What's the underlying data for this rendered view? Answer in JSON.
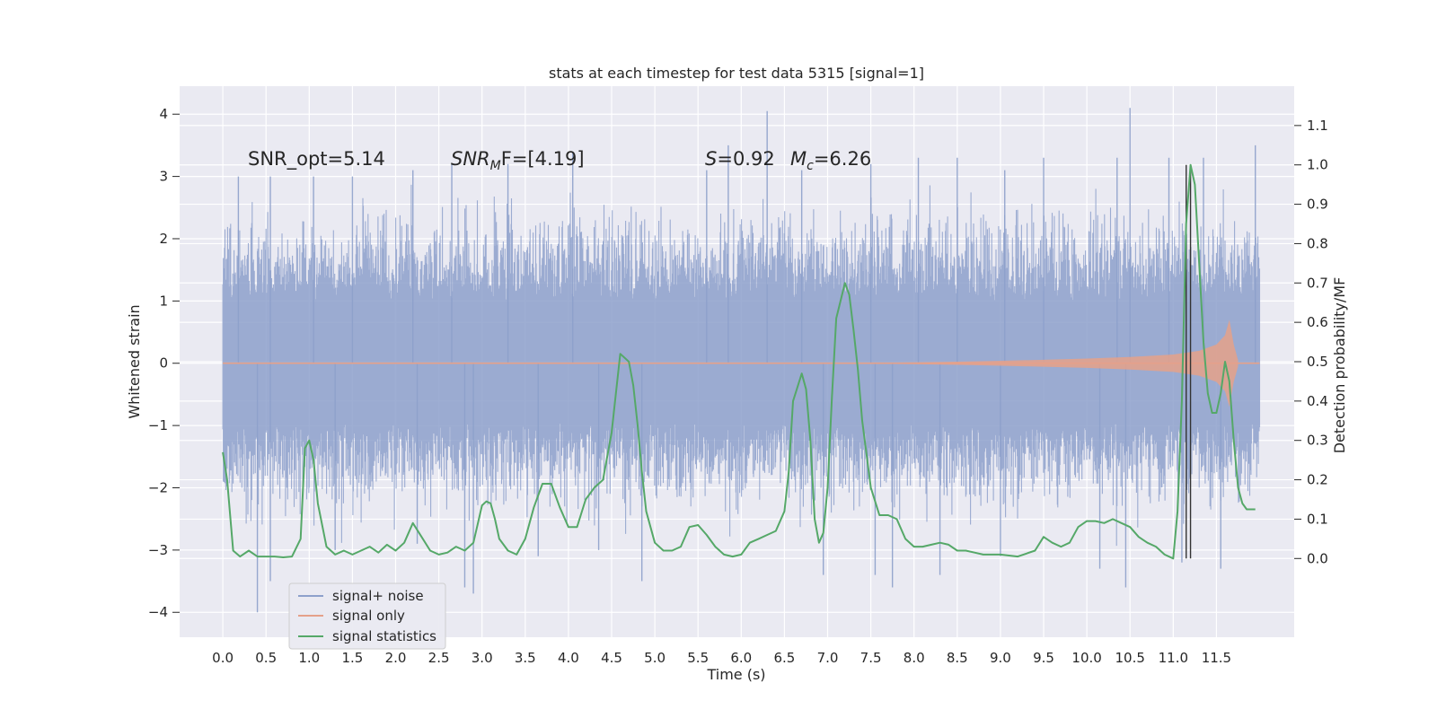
{
  "chart_data": {
    "type": "line",
    "title": "stats at each timestep for test data 5315 [signal=1]",
    "xlabel": "Time (s)",
    "ylabel_left": "Whitened strain",
    "ylabel_right": "Detection probability/MF",
    "xlim": [
      -0.5,
      12.4
    ],
    "ylim_left": [
      -4.4,
      4.45
    ],
    "ylim_right": [
      -0.2,
      1.2
    ],
    "x_ticks": [
      0.0,
      0.5,
      1.0,
      1.5,
      2.0,
      2.5,
      3.0,
      3.5,
      4.0,
      4.5,
      5.0,
      5.5,
      6.0,
      6.5,
      7.0,
      7.5,
      8.0,
      8.5,
      9.0,
      9.5,
      10.0,
      10.5,
      11.0,
      11.5
    ],
    "x_tick_labels": [
      "0.0",
      "0.5",
      "1.0",
      "1.5",
      "2.0",
      "2.5",
      "3.0",
      "3.5",
      "4.0",
      "4.5",
      "5.0",
      "5.5",
      "6.0",
      "6.5",
      "7.0",
      "7.5",
      "8.0",
      "8.5",
      "9.0",
      "9.5",
      "10.0",
      "10.5",
      "11.0",
      "11.5"
    ],
    "y_left_ticks": [
      4,
      3,
      2,
      1,
      0,
      -1,
      -2,
      -3,
      -4
    ],
    "y_left_tick_labels": [
      "4",
      "3",
      "2",
      "1",
      "0",
      "−1",
      "−2",
      "−3",
      "−4"
    ],
    "y_right_ticks": [
      1.1,
      1.0,
      0.9,
      0.8,
      0.7,
      0.6,
      0.5,
      0.4,
      0.3,
      0.2,
      0.1,
      0.0
    ],
    "y_right_tick_labels": [
      "1.1",
      "1.0",
      "0.9",
      "0.8",
      "0.7",
      "0.6",
      "0.5",
      "0.4",
      "0.3",
      "0.2",
      "0.1",
      "0.0"
    ],
    "annotations": {
      "snr_opt": "SNR_opt=5.14",
      "snr_mf_main": "SNR",
      "snr_mf_sub": "M",
      "snr_mf_rest": "F=[4.19]",
      "s_var": "S",
      "s_val": "=0.92",
      "mc_var": "M",
      "mc_sub": "c",
      "mc_val": "=6.26"
    },
    "legend": {
      "placement": "lower-left",
      "entries": [
        "signal+ noise",
        "signal only",
        "signal statistics"
      ]
    },
    "grid": true,
    "series": [
      {
        "name": "signal+ noise",
        "color": "#8da0cb",
        "axis": "left",
        "x_range": [
          0.0,
          12.0
        ],
        "band_typical": [
          -1.6,
          1.7
        ],
        "spikes_up": [
          [
            0.18,
            3.0
          ],
          [
            0.55,
            3.0
          ],
          [
            1.05,
            3.0
          ],
          [
            1.5,
            3.0
          ],
          [
            2.2,
            3.1
          ],
          [
            2.65,
            3.2
          ],
          [
            3.3,
            3.2
          ],
          [
            4.05,
            3.4
          ],
          [
            5.6,
            3.1
          ],
          [
            5.85,
            3.5
          ],
          [
            6.3,
            4.05
          ],
          [
            6.7,
            3.1
          ],
          [
            7.5,
            3.2
          ],
          [
            8.05,
            3.3
          ],
          [
            8.5,
            3.3
          ],
          [
            9.05,
            3.1
          ],
          [
            9.5,
            3.3
          ],
          [
            10.35,
            3.3
          ],
          [
            10.95,
            3.3
          ],
          [
            11.35,
            3.3
          ],
          [
            11.95,
            3.5
          ],
          [
            10.5,
            4.1
          ]
        ],
        "spikes_down": [
          [
            0.4,
            -4.0
          ],
          [
            0.55,
            -3.5
          ],
          [
            1.3,
            -3.0
          ],
          [
            2.25,
            -2.9
          ],
          [
            2.8,
            -3.6
          ],
          [
            2.9,
            -3.7
          ],
          [
            3.65,
            -3.1
          ],
          [
            4.35,
            -3.0
          ],
          [
            4.85,
            -3.5
          ],
          [
            6.95,
            -3.4
          ],
          [
            7.55,
            -3.4
          ],
          [
            7.75,
            -3.6
          ],
          [
            8.3,
            -3.4
          ],
          [
            9.0,
            -3.1
          ],
          [
            10.15,
            -3.3
          ],
          [
            10.45,
            -3.6
          ],
          [
            11.1,
            -3.2
          ],
          [
            11.55,
            -3.3
          ]
        ]
      },
      {
        "name": "signal only",
        "color": "#e5a18a",
        "axis": "left",
        "envelope": {
          "x": [
            7.5,
            8.0,
            8.5,
            9.0,
            9.5,
            10.0,
            10.5,
            11.0,
            11.3,
            11.5,
            11.6,
            11.65,
            11.7,
            11.75
          ],
          "amp": [
            0.005,
            0.015,
            0.025,
            0.04,
            0.055,
            0.075,
            0.1,
            0.14,
            0.2,
            0.3,
            0.45,
            0.7,
            0.3,
            0.05
          ]
        }
      },
      {
        "name": "signal statistics",
        "color": "#55a868",
        "axis": "right",
        "x": [
          0.0,
          0.05,
          0.12,
          0.2,
          0.3,
          0.4,
          0.5,
          0.6,
          0.7,
          0.8,
          0.9,
          0.95,
          1.0,
          1.05,
          1.1,
          1.2,
          1.3,
          1.4,
          1.5,
          1.6,
          1.7,
          1.8,
          1.9,
          2.0,
          2.1,
          2.2,
          2.3,
          2.4,
          2.5,
          2.6,
          2.7,
          2.8,
          2.9,
          3.0,
          3.05,
          3.1,
          3.15,
          3.2,
          3.3,
          3.4,
          3.5,
          3.6,
          3.7,
          3.8,
          3.9,
          4.0,
          4.1,
          4.2,
          4.3,
          4.4,
          4.5,
          4.6,
          4.7,
          4.75,
          4.8,
          4.85,
          4.9,
          5.0,
          5.1,
          5.2,
          5.3,
          5.4,
          5.5,
          5.6,
          5.7,
          5.8,
          5.9,
          6.0,
          6.1,
          6.2,
          6.3,
          6.4,
          6.5,
          6.55,
          6.6,
          6.7,
          6.75,
          6.8,
          6.85,
          6.9,
          6.95,
          7.0,
          7.05,
          7.1,
          7.2,
          7.25,
          7.3,
          7.35,
          7.4,
          7.5,
          7.6,
          7.7,
          7.8,
          7.9,
          8.0,
          8.1,
          8.2,
          8.3,
          8.4,
          8.5,
          8.6,
          8.7,
          8.8,
          9.0,
          9.2,
          9.4,
          9.5,
          9.6,
          9.7,
          9.8,
          9.9,
          10.0,
          10.1,
          10.2,
          10.3,
          10.4,
          10.5,
          10.6,
          10.7,
          10.8,
          10.9,
          11.0,
          11.05,
          11.1,
          11.15,
          11.2,
          11.25,
          11.3,
          11.35,
          11.4,
          11.45,
          11.5,
          11.55,
          11.6,
          11.65,
          11.7,
          11.75,
          11.8,
          11.85,
          11.9,
          11.95
        ],
        "values": [
          0.27,
          0.2,
          0.02,
          0.005,
          0.02,
          0.005,
          0.005,
          0.005,
          0.003,
          0.005,
          0.05,
          0.28,
          0.3,
          0.25,
          0.14,
          0.03,
          0.01,
          0.02,
          0.01,
          0.02,
          0.03,
          0.015,
          0.035,
          0.02,
          0.04,
          0.09,
          0.055,
          0.02,
          0.01,
          0.015,
          0.03,
          0.02,
          0.04,
          0.135,
          0.145,
          0.14,
          0.1,
          0.05,
          0.02,
          0.01,
          0.05,
          0.13,
          0.19,
          0.19,
          0.13,
          0.08,
          0.08,
          0.15,
          0.18,
          0.2,
          0.32,
          0.52,
          0.5,
          0.44,
          0.34,
          0.22,
          0.12,
          0.04,
          0.02,
          0.02,
          0.03,
          0.08,
          0.085,
          0.06,
          0.03,
          0.01,
          0.005,
          0.01,
          0.04,
          0.05,
          0.06,
          0.07,
          0.12,
          0.22,
          0.4,
          0.47,
          0.43,
          0.3,
          0.1,
          0.04,
          0.065,
          0.18,
          0.41,
          0.61,
          0.7,
          0.67,
          0.58,
          0.48,
          0.35,
          0.18,
          0.11,
          0.11,
          0.1,
          0.05,
          0.03,
          0.03,
          0.035,
          0.04,
          0.035,
          0.02,
          0.02,
          0.015,
          0.01,
          0.01,
          0.005,
          0.02,
          0.055,
          0.04,
          0.03,
          0.04,
          0.08,
          0.095,
          0.095,
          0.09,
          0.1,
          0.09,
          0.08,
          0.055,
          0.04,
          0.03,
          0.01,
          0.0,
          0.12,
          0.4,
          0.85,
          1.0,
          0.95,
          0.75,
          0.55,
          0.42,
          0.37,
          0.37,
          0.42,
          0.5,
          0.45,
          0.3,
          0.18,
          0.14,
          0.125,
          0.125,
          0.125
        ]
      }
    ],
    "vertical_lines": [
      {
        "x": 11.15,
        "y": [
          0.0,
          1.0
        ],
        "color": "#333333"
      },
      {
        "x": 11.2,
        "y": [
          0.0,
          1.0
        ],
        "color": "#333333"
      }
    ]
  }
}
